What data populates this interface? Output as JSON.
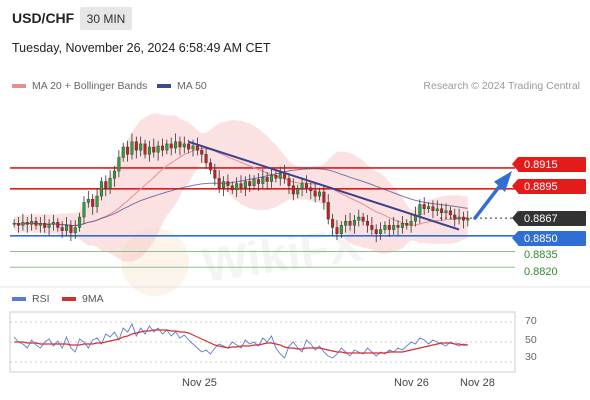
{
  "header": {
    "symbol": "USD/CHF",
    "timeframe": "30 MIN",
    "datetime": "Tuesday, November 26, 2024 6:58:49 AM CET"
  },
  "legend": {
    "ma20_label": "MA 20 + Bollinger Bands",
    "ma50_label": "MA 50",
    "copyright": "Research © 2024 Trading Central",
    "rsi_label": "RSI",
    "ma9_label": "9MA"
  },
  "colors": {
    "resistance": "#e31b1b",
    "support": "#2f6fd4",
    "current": "#333333",
    "minor": "#2e8b2e",
    "ma20": "#e88e8e",
    "ma50": "#3d4a8c",
    "rsi": "#5b7bd5",
    "ma9": "#d43030"
  },
  "chart_data": [
    {
      "type": "candlestick",
      "ylim": [
        0.8802,
        0.898
      ],
      "levels": [
        {
          "value": "0.8915",
          "type": "resistance"
        },
        {
          "value": "0.8895",
          "type": "resistance"
        },
        {
          "value": "0.8867",
          "type": "current"
        },
        {
          "value": "0.8850",
          "type": "support"
        },
        {
          "value": "0.8835",
          "type": "minor"
        },
        {
          "value": "0.8820",
          "type": "minor"
        }
      ],
      "x_tick_labels": [
        "Nov 25",
        "Nov 26",
        "Nov 28"
      ],
      "closes": [
        0.8862,
        0.886,
        0.8863,
        0.8861,
        0.8864,
        0.886,
        0.8862,
        0.8858,
        0.8861,
        0.8863,
        0.8858,
        0.8855,
        0.886,
        0.8853,
        0.8858,
        0.8868,
        0.8882,
        0.8885,
        0.8878,
        0.8888,
        0.8902,
        0.8895,
        0.8905,
        0.8912,
        0.8925,
        0.8935,
        0.8928,
        0.894,
        0.8932,
        0.8938,
        0.8928,
        0.8935,
        0.893,
        0.8936,
        0.8932,
        0.8938,
        0.8934,
        0.894,
        0.8935,
        0.8938,
        0.8933,
        0.8936,
        0.8932,
        0.8928,
        0.892,
        0.8913,
        0.8905,
        0.8896,
        0.8902,
        0.8898,
        0.8894,
        0.89,
        0.8896,
        0.8902,
        0.8898,
        0.8904,
        0.89,
        0.8906,
        0.8902,
        0.8908,
        0.8905,
        0.891,
        0.8905,
        0.8898,
        0.889,
        0.8895,
        0.89,
        0.8896,
        0.8893,
        0.8888,
        0.8892,
        0.8882,
        0.8866,
        0.8858,
        0.8852,
        0.886,
        0.8864,
        0.886,
        0.8865,
        0.8868,
        0.8864,
        0.886,
        0.8856,
        0.8852,
        0.8856,
        0.886,
        0.8856,
        0.886,
        0.8858,
        0.8862,
        0.886,
        0.8864,
        0.887,
        0.888,
        0.8876,
        0.8878,
        0.8874,
        0.8876,
        0.8872,
        0.8874,
        0.887,
        0.8866,
        0.8868,
        0.8865,
        0.8867
      ]
    },
    {
      "type": "line",
      "title": "RSI",
      "ylim": [
        20,
        80
      ],
      "y_tick_labels": [
        "70",
        "50",
        "30"
      ],
      "series": [
        {
          "name": "RSI",
          "values": [
            55,
            50,
            48,
            44,
            52,
            47,
            44,
            50,
            53,
            46,
            51,
            44,
            55,
            44,
            40,
            53,
            50,
            44,
            52,
            54,
            48,
            58,
            55,
            60,
            52,
            64,
            60,
            68,
            56,
            64,
            58,
            66,
            60,
            64,
            58,
            62,
            56,
            60,
            54,
            57,
            52,
            48,
            44,
            40,
            42,
            38,
            44,
            48,
            46,
            44,
            50,
            47,
            44,
            52,
            48,
            50,
            46,
            54,
            50,
            56,
            44,
            38,
            34,
            46,
            50,
            44,
            40,
            52,
            48,
            42,
            46,
            40,
            36,
            34,
            38,
            44,
            40,
            36,
            42,
            40,
            38,
            44,
            40,
            36,
            40,
            38,
            42,
            40,
            44,
            42,
            46,
            50,
            48,
            54,
            52,
            48,
            52,
            50,
            48,
            46,
            50,
            48,
            46,
            48,
            47
          ]
        },
        {
          "name": "9MA",
          "values": [
            50,
            50,
            50,
            49,
            49,
            49,
            48,
            48,
            48,
            48,
            48,
            48,
            48,
            47,
            47,
            47,
            48,
            48,
            48,
            49,
            49,
            50,
            51,
            52,
            53,
            55,
            56,
            58,
            59,
            60,
            61,
            61,
            62,
            62,
            62,
            62,
            61,
            61,
            60,
            60,
            59,
            57,
            55,
            53,
            51,
            49,
            47,
            46,
            45,
            44,
            45,
            45,
            46,
            46,
            46,
            47,
            47,
            48,
            49,
            49,
            48,
            47,
            45,
            44,
            44,
            43,
            43,
            44,
            44,
            44,
            44,
            43,
            42,
            41,
            40,
            40,
            39,
            39,
            39,
            39,
            39,
            39,
            39,
            39,
            39,
            39,
            40,
            40,
            40,
            40,
            41,
            42,
            43,
            44,
            45,
            46,
            47,
            48,
            49,
            49,
            49,
            48,
            48,
            47,
            47
          ]
        }
      ]
    }
  ]
}
